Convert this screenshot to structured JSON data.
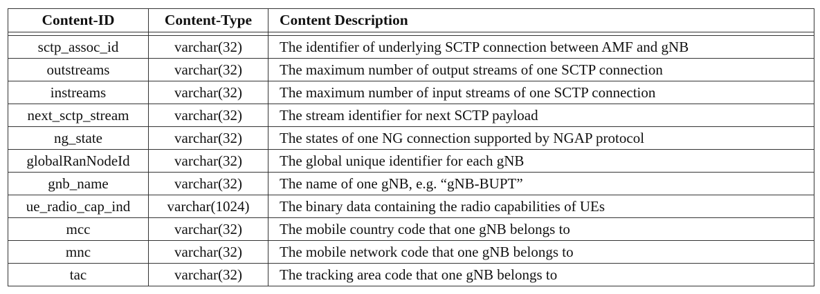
{
  "table": {
    "headers": {
      "content_id": "Content-ID",
      "content_type": "Content-Type",
      "content_description": "Content Description"
    },
    "rows": [
      {
        "id": "sctp_assoc_id",
        "type": "varchar(32)",
        "description": "The identifier of underlying SCTP connection between AMF and gNB"
      },
      {
        "id": "outstreams",
        "type": "varchar(32)",
        "description": "The maximum number of output streams of one SCTP connection"
      },
      {
        "id": "instreams",
        "type": "varchar(32)",
        "description": "The maximum number of input streams of one SCTP connection"
      },
      {
        "id": "next_sctp_stream",
        "type": "varchar(32)",
        "description": "The stream identifier for next SCTP payload"
      },
      {
        "id": "ng_state",
        "type": "varchar(32)",
        "description": "The states of one NG connection supported by NGAP protocol"
      },
      {
        "id": "globalRanNodeId",
        "type": "varchar(32)",
        "description": "The global unique identifier for each gNB"
      },
      {
        "id": "gnb_name",
        "type": "varchar(32)",
        "description": "The name of one gNB, e.g. “gNB-BUPT”"
      },
      {
        "id": "ue_radio_cap_ind",
        "type": "varchar(1024)",
        "description": "The binary data containing the radio capabilities of UEs"
      },
      {
        "id": "mcc",
        "type": "varchar(32)",
        "description": "The mobile country code that one gNB belongs to"
      },
      {
        "id": "mnc",
        "type": "varchar(32)",
        "description": "The mobile network code that one gNB belongs to"
      },
      {
        "id": "tac",
        "type": "varchar(32)",
        "description": "The tracking area code that one gNB belongs to"
      }
    ]
  }
}
